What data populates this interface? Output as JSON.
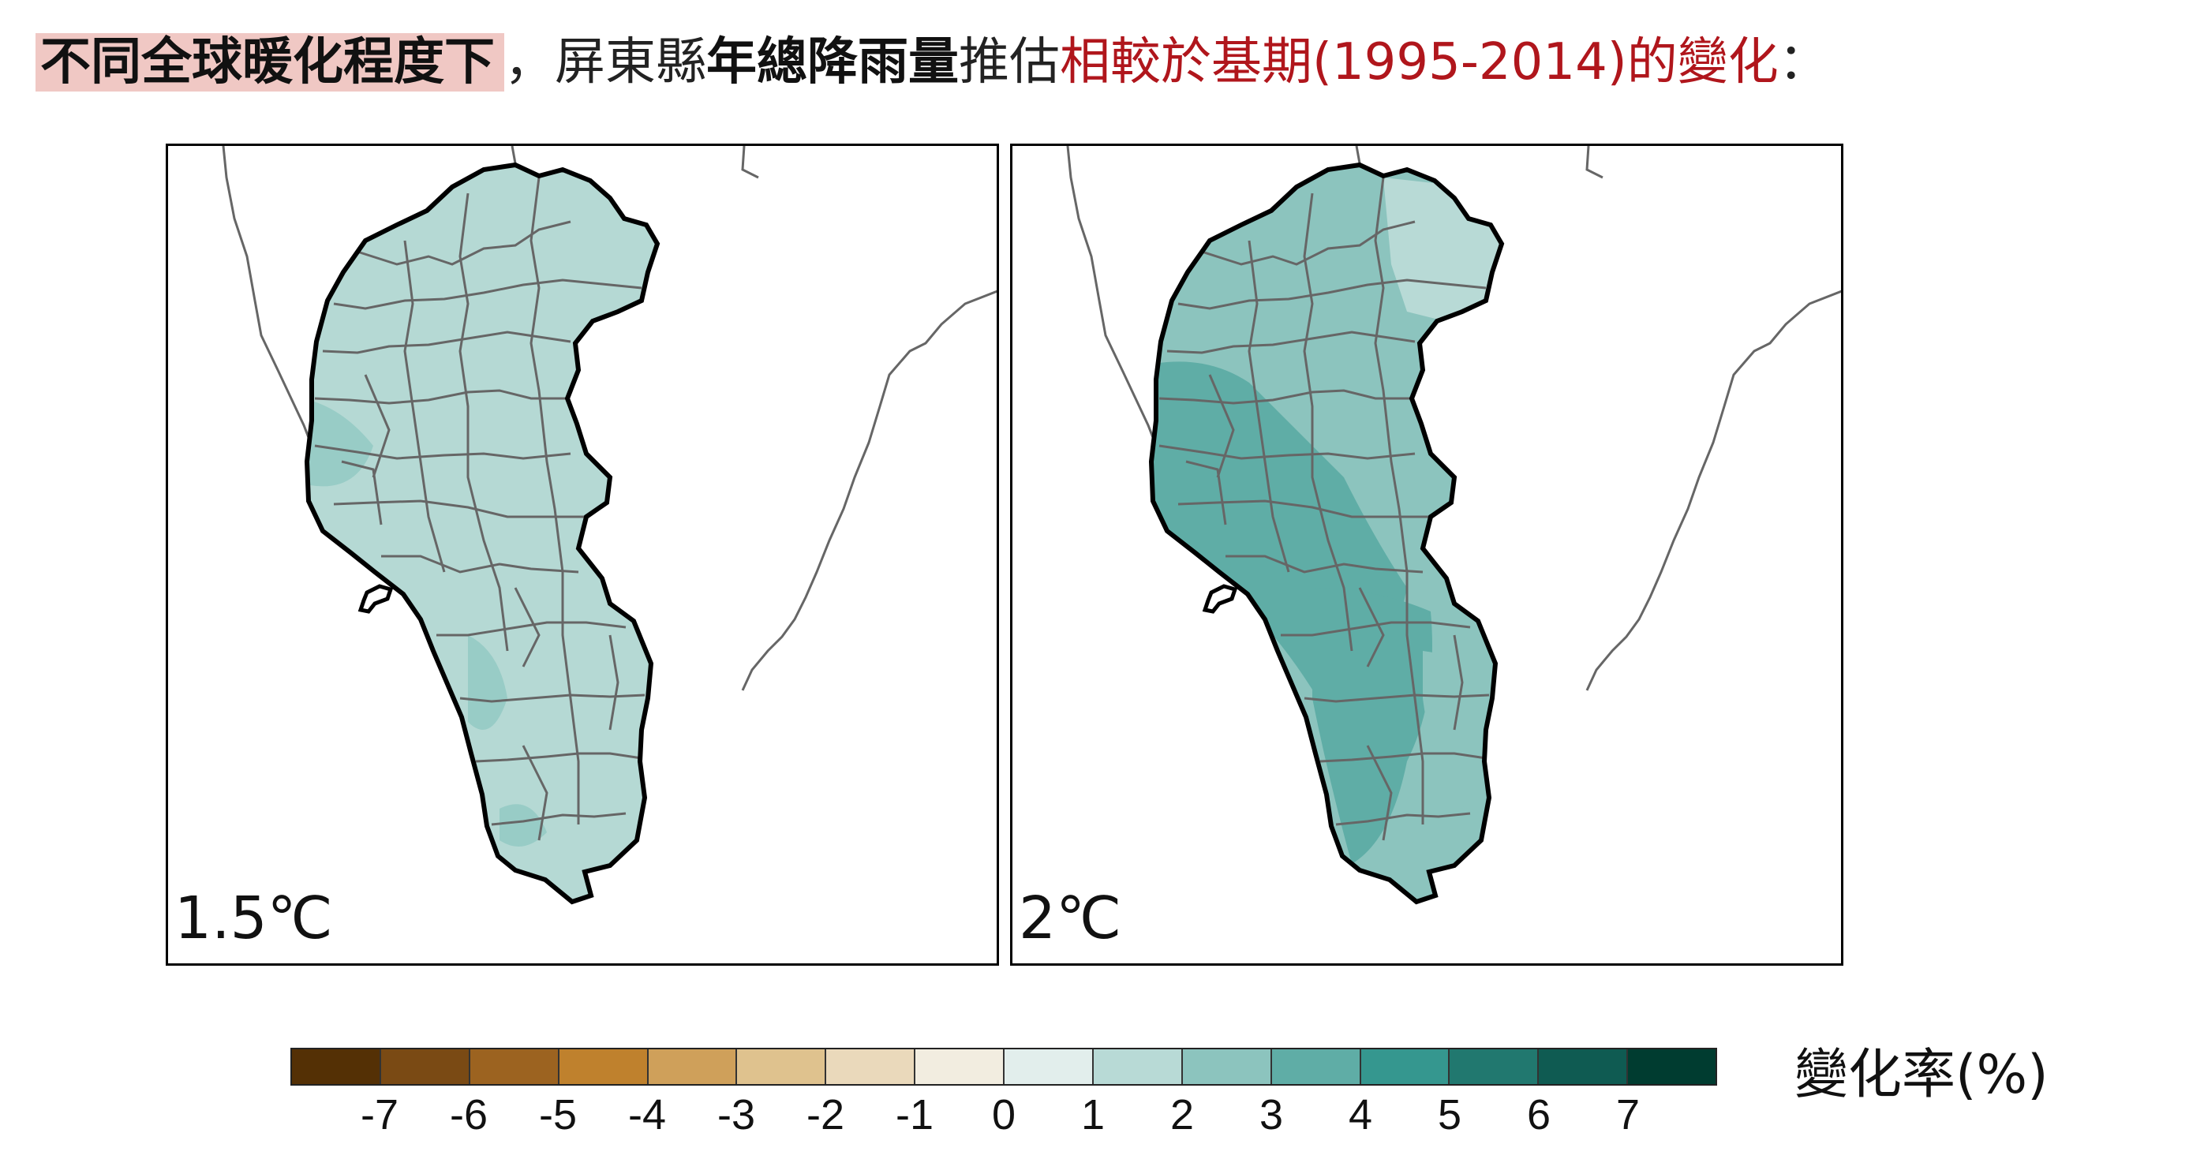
{
  "title": {
    "highlight": "不同全球暖化程度下",
    "sep": "，屏東縣",
    "bold": "年總降雨量",
    "mid": "推估",
    "red": "相較於基期(1995-2014)的變化",
    "end": "："
  },
  "panels": [
    {
      "label": "1.5℃"
    },
    {
      "label": "2℃"
    }
  ],
  "colorbar": {
    "label": "變化率(%)",
    "ticks": [
      "-7",
      "-6",
      "-5",
      "-4",
      "-3",
      "-2",
      "-1",
      "0",
      "1",
      "2",
      "3",
      "4",
      "5",
      "6",
      "7"
    ],
    "colors": [
      "#543005",
      "#7a4a14",
      "#9c6320",
      "#bf812d",
      "#cfa05a",
      "#dfc28e",
      "#ead9bb",
      "#f2ede0",
      "#e2eeec",
      "#b8dad6",
      "#8cc4be",
      "#5fadA6",
      "#35978f",
      "#21786f",
      "#0f5b52",
      "#003c30"
    ],
    "value_range": [
      -8,
      8
    ]
  },
  "map_colors": {
    "p15_base": "#b5d9d4",
    "p15_patch": "#98ccc6",
    "p2_base": "#8cc4be",
    "p2_light": "#b8dad6",
    "p2_dark": "#5fada6"
  }
}
